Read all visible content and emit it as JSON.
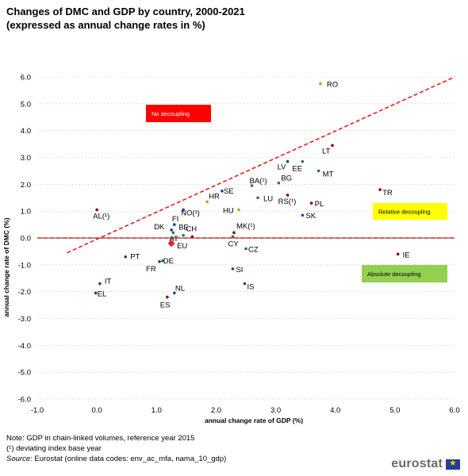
{
  "header": {
    "title_line1": "Changes of DMC and GDP by country, 2000-2021",
    "title_line2": "(expressed as annual change rates in %)"
  },
  "notes": {
    "note_line": "Note: GDP in chain-linked volumes, reference year 2015",
    "deviating_line": "(¹) deviating index base year",
    "source_label": "Source:",
    "source_text": " Eurostat (online data codes: env_ac_mfa, nama_10_gdp)"
  },
  "branding": {
    "logo_text": "eurostat"
  },
  "chart_data": {
    "type": "scatter",
    "xlabel": "annual change rate of GDP (%)",
    "ylabel": "annual change rate of DMC (%)",
    "xlim": [
      -1.0,
      6.0
    ],
    "ylim": [
      -6.0,
      6.0
    ],
    "x_ticks": [
      "-1.0",
      "0.0",
      "1.0",
      "2.0",
      "3.0",
      "4.0",
      "5.0",
      "6.0"
    ],
    "y_ticks": [
      "6.0",
      "5.0",
      "4.0",
      "3.0",
      "2.0",
      "1.0",
      "0.0",
      "-1.0",
      "-2.0",
      "-3.0",
      "-4.0",
      "-5.0",
      "-6.0"
    ],
    "grid": "horizontal",
    "points": [
      {
        "label": "RO",
        "x": 3.75,
        "y": 5.75,
        "color": "#c8a000"
      },
      {
        "label": "LT",
        "x": 3.95,
        "y": 3.45,
        "color": "#8b0000"
      },
      {
        "label": "LV",
        "x": 3.2,
        "y": 2.85,
        "color": "#1f3f99"
      },
      {
        "label": "EE",
        "x": 3.45,
        "y": 2.85,
        "color": "#1f7a4d"
      },
      {
        "label": "MT",
        "x": 3.72,
        "y": 2.5,
        "color": "#1f7a4d"
      },
      {
        "label": "BG",
        "x": 3.05,
        "y": 2.05,
        "color": "#1f7a4d"
      },
      {
        "label": "BA(¹)",
        "x": 2.6,
        "y": 1.95,
        "color": "#1f7a4d"
      },
      {
        "label": "SE",
        "x": 2.1,
        "y": 1.75,
        "color": "#1f3f99"
      },
      {
        "label": "LU",
        "x": 2.7,
        "y": 1.5,
        "color": "#1f7a4d"
      },
      {
        "label": "RS(¹)",
        "x": 3.2,
        "y": 1.6,
        "color": "#8b0000"
      },
      {
        "label": "PL",
        "x": 3.6,
        "y": 1.3,
        "color": "#8b0000"
      },
      {
        "label": "HR",
        "x": 1.85,
        "y": 1.35,
        "color": "#c8a000"
      },
      {
        "label": "HU",
        "x": 2.38,
        "y": 1.05,
        "color": "#c8a000"
      },
      {
        "label": "NO(¹)",
        "x": 1.45,
        "y": 1.05,
        "color": "#1f3f99"
      },
      {
        "label": "AL(¹)",
        "x": 0.0,
        "y": 1.05,
        "color": "#8b0000"
      },
      {
        "label": "SK",
        "x": 3.45,
        "y": 0.85,
        "color": "#1f3f99"
      },
      {
        "label": "TR",
        "x": 4.75,
        "y": 1.8,
        "color": "#8b0000"
      },
      {
        "label": "FI",
        "x": 1.3,
        "y": 0.5,
        "color": "#1f3f99"
      },
      {
        "label": "DK",
        "x": 1.25,
        "y": 0.3,
        "color": "#1f3f99"
      },
      {
        "label": "AT",
        "x": 1.28,
        "y": 0.2,
        "color": "#1f7a4d"
      },
      {
        "label": "BE",
        "x": 1.45,
        "y": 0.1,
        "color": "#1f7a4d"
      },
      {
        "label": "CH",
        "x": 1.6,
        "y": 0.05,
        "color": "#8b0000"
      },
      {
        "label": "MK(¹)",
        "x": 2.3,
        "y": 0.2,
        "color": "#8b0000"
      },
      {
        "label": "CY",
        "x": 2.28,
        "y": 0.05,
        "color": "#1f7a4d"
      },
      {
        "label": "CZ",
        "x": 2.5,
        "y": -0.4,
        "color": "#1f7a4d"
      },
      {
        "label": "IE",
        "x": 5.05,
        "y": -0.6,
        "color": "#8b0000"
      },
      {
        "label": "PT",
        "x": 0.48,
        "y": -0.7,
        "color": "#1f3f99"
      },
      {
        "label": "DE",
        "x": 1.1,
        "y": -0.85,
        "color": "#1f7a4d"
      },
      {
        "label": "FR",
        "x": 1.05,
        "y": -0.88,
        "color": "#1f3f99"
      },
      {
        "label": "SI",
        "x": 2.28,
        "y": -1.15,
        "color": "#1f3f99"
      },
      {
        "label": "IS",
        "x": 2.48,
        "y": -1.7,
        "color": "#1f3f99"
      },
      {
        "label": "IT",
        "x": 0.05,
        "y": -1.7,
        "color": "#1f3f99"
      },
      {
        "label": "EL",
        "x": -0.02,
        "y": -2.05,
        "color": "#1f3f99"
      },
      {
        "label": "NL",
        "x": 1.3,
        "y": -2.05,
        "color": "#1f3f99"
      },
      {
        "label": "ES",
        "x": 1.18,
        "y": -2.2,
        "color": "#8b0000"
      },
      {
        "label": "EU",
        "x": 1.25,
        "y": -0.2,
        "color": "#e02020",
        "marker": "diamond"
      }
    ],
    "reference_lines": [
      {
        "type": "diagonal",
        "from": [
          -0.5,
          -0.55
        ],
        "to": [
          6.0,
          6.0
        ],
        "color": "#e02020",
        "dash": true
      },
      {
        "type": "horizontal",
        "y": 0.0,
        "color": "#e02020",
        "dash": true
      }
    ],
    "annotations": [
      {
        "text": "No decoupling",
        "bg": "#ff0000",
        "fg": "#ffffff"
      },
      {
        "text": "Relative decoupling",
        "bg": "#ffff00",
        "fg": "#000000"
      },
      {
        "text": "Absolute decoupling",
        "bg": "#92d050",
        "fg": "#000000"
      }
    ]
  }
}
